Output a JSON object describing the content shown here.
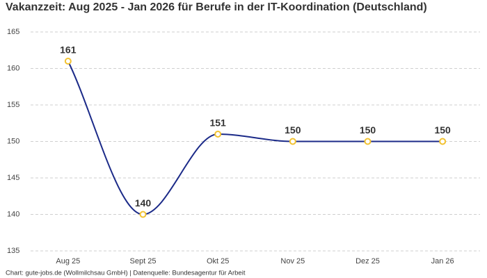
{
  "chart_data": {
    "type": "line",
    "title": "Vakanzzeit: Aug 2025 - Jan 2026 für Berufe in der IT-Koordination (Deutschland)",
    "source": "Chart: gute-jobs.de (Wollmilchsau GmbH) | Datenquelle: Bundesagentur für Arbeit",
    "categories": [
      "Aug 25",
      "Sept 25",
      "Okt 25",
      "Nov 25",
      "Dez 25",
      "Jan 26"
    ],
    "values": [
      161,
      140,
      151,
      150,
      150,
      150
    ],
    "color": "#1b2a88",
    "marker_color": "#f2c230",
    "ylim": [
      135,
      165
    ],
    "yticks": [
      135,
      140,
      145,
      150,
      155,
      160,
      165
    ],
    "grid": true
  }
}
